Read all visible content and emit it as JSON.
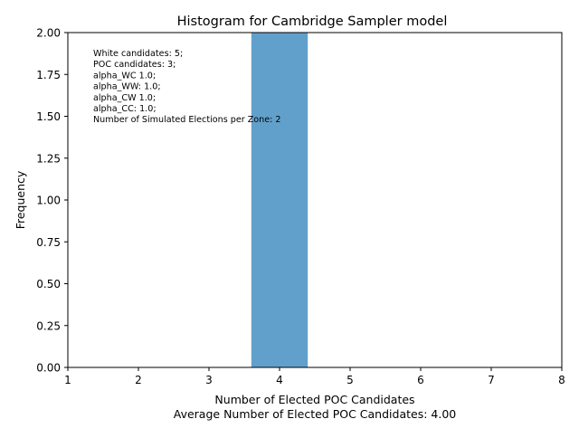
{
  "chart_data": {
    "type": "bar",
    "title": "Histogram for Cambridge Sampler model",
    "xlabel": "Number of Elected POC Candidates",
    "xlabel_secondary": "Average Number of Elected POC Candidates: 4.00",
    "ylabel": "Frequency",
    "xlim": [
      1,
      8
    ],
    "ylim": [
      0,
      2
    ],
    "xticks": [
      "1",
      "2",
      "3",
      "4",
      "5",
      "6",
      "7",
      "8"
    ],
    "yticks": [
      "0.00",
      "0.25",
      "0.50",
      "0.75",
      "1.00",
      "1.25",
      "1.50",
      "1.75",
      "2.00"
    ],
    "bars": [
      {
        "x_start": 3.6,
        "x_end": 4.4,
        "value": 2
      }
    ],
    "bar_color": "#62a0cc",
    "grid": false,
    "annotation": [
      "White candidates: 5;",
      "POC candidates: 3;",
      "alpha_WC 1.0;",
      "alpha_WW: 1.0;",
      "alpha_CW 1.0;",
      "alpha_CC: 1.0;",
      "Number of Simulated Elections per Zone: 2"
    ]
  }
}
